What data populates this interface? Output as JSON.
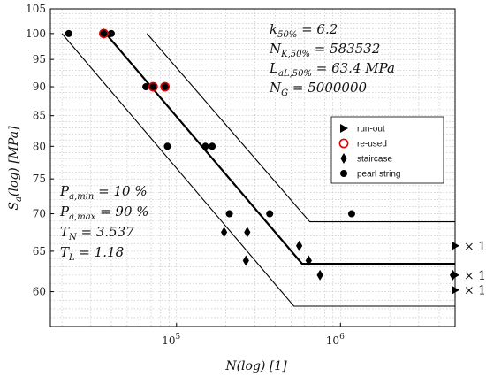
{
  "chart_data": {
    "type": "scatter",
    "xlabel": "N(log) [1]",
    "ylabel": "S_a(log) [MPa]",
    "x_scale": "log",
    "y_scale": "log",
    "xlim": [
      17000,
      5000000
    ],
    "ylim": [
      56,
      105
    ],
    "x_ticks": [
      {
        "value": 100000,
        "label": "10^5"
      },
      {
        "value": 1000000,
        "label": "10^6"
      }
    ],
    "y_ticks": [
      {
        "value": 60,
        "label": "60"
      },
      {
        "value": 65,
        "label": "65"
      },
      {
        "value": 70,
        "label": "70"
      },
      {
        "value": 75,
        "label": "75"
      },
      {
        "value": 80,
        "label": "80"
      },
      {
        "value": 85,
        "label": "85"
      },
      {
        "value": 90,
        "label": "90"
      },
      {
        "value": 95,
        "label": "95"
      },
      {
        "value": 100,
        "label": "100"
      },
      {
        "value": 105,
        "label": "105"
      }
    ],
    "grid": true,
    "legend_position": "right",
    "legend": [
      {
        "name": "run-out",
        "marker": "triangle-right"
      },
      {
        "name": "re-used",
        "marker": "circle-open-red"
      },
      {
        "name": "staircase",
        "marker": "diamond"
      },
      {
        "name": "pearl string",
        "marker": "circle"
      }
    ],
    "series": [
      {
        "name": "pearl string",
        "points": [
          {
            "x": 22000,
            "y": 100
          },
          {
            "x": 36000,
            "y": 100
          },
          {
            "x": 40000,
            "y": 100
          },
          {
            "x": 65000,
            "y": 90
          },
          {
            "x": 72000,
            "y": 90
          },
          {
            "x": 85000,
            "y": 90
          },
          {
            "x": 88000,
            "y": 80
          },
          {
            "x": 150000,
            "y": 80
          },
          {
            "x": 165000,
            "y": 80
          },
          {
            "x": 210000,
            "y": 70
          },
          {
            "x": 370000,
            "y": 70
          },
          {
            "x": 1170000,
            "y": 70
          }
        ]
      },
      {
        "name": "re-used",
        "points": [
          {
            "x": 36000,
            "y": 100
          },
          {
            "x": 72000,
            "y": 90
          },
          {
            "x": 85000,
            "y": 90
          }
        ]
      },
      {
        "name": "staircase",
        "points": [
          {
            "x": 195000,
            "y": 67.5
          },
          {
            "x": 270000,
            "y": 67.5
          },
          {
            "x": 265000,
            "y": 63.8
          },
          {
            "x": 560000,
            "y": 65.7
          },
          {
            "x": 640000,
            "y": 63.8
          },
          {
            "x": 750000,
            "y": 62
          },
          {
            "x": 4850000,
            "y": 62
          }
        ]
      },
      {
        "name": "run-out",
        "points": [
          {
            "x": 5000000,
            "y": 65.7
          },
          {
            "x": 5000000,
            "y": 62
          },
          {
            "x": 5000000,
            "y": 60.2
          }
        ]
      }
    ],
    "curves": [
      {
        "name": "P50",
        "points": [
          {
            "x": 37000,
            "y": 100
          },
          {
            "x": 583532,
            "y": 63.4
          },
          {
            "x": 5000000,
            "y": 63.4
          }
        ]
      },
      {
        "name": "P10",
        "points": [
          {
            "x": 20000,
            "y": 100
          },
          {
            "x": 520000,
            "y": 58.3
          },
          {
            "x": 5000000,
            "y": 58.3
          }
        ]
      },
      {
        "name": "P90",
        "points": [
          {
            "x": 66000,
            "y": 100
          },
          {
            "x": 650000,
            "y": 68.9
          },
          {
            "x": 5000000,
            "y": 68.9
          }
        ]
      }
    ],
    "runout_counts": [
      {
        "y": 65.7,
        "label": "× 1"
      },
      {
        "y": 62,
        "label": "× 1"
      },
      {
        "y": 60.2,
        "label": "× 1"
      }
    ],
    "annotations_top": [
      "k50% = 6.2",
      "NK,50% = 583532",
      "LaL,50% = 63.4 MPa",
      "NG = 5000000"
    ],
    "annotations_left": [
      "Pa,min = 10 %",
      "Pa,max = 90 %",
      "TN = 3.537",
      "TL = 1.18"
    ]
  }
}
